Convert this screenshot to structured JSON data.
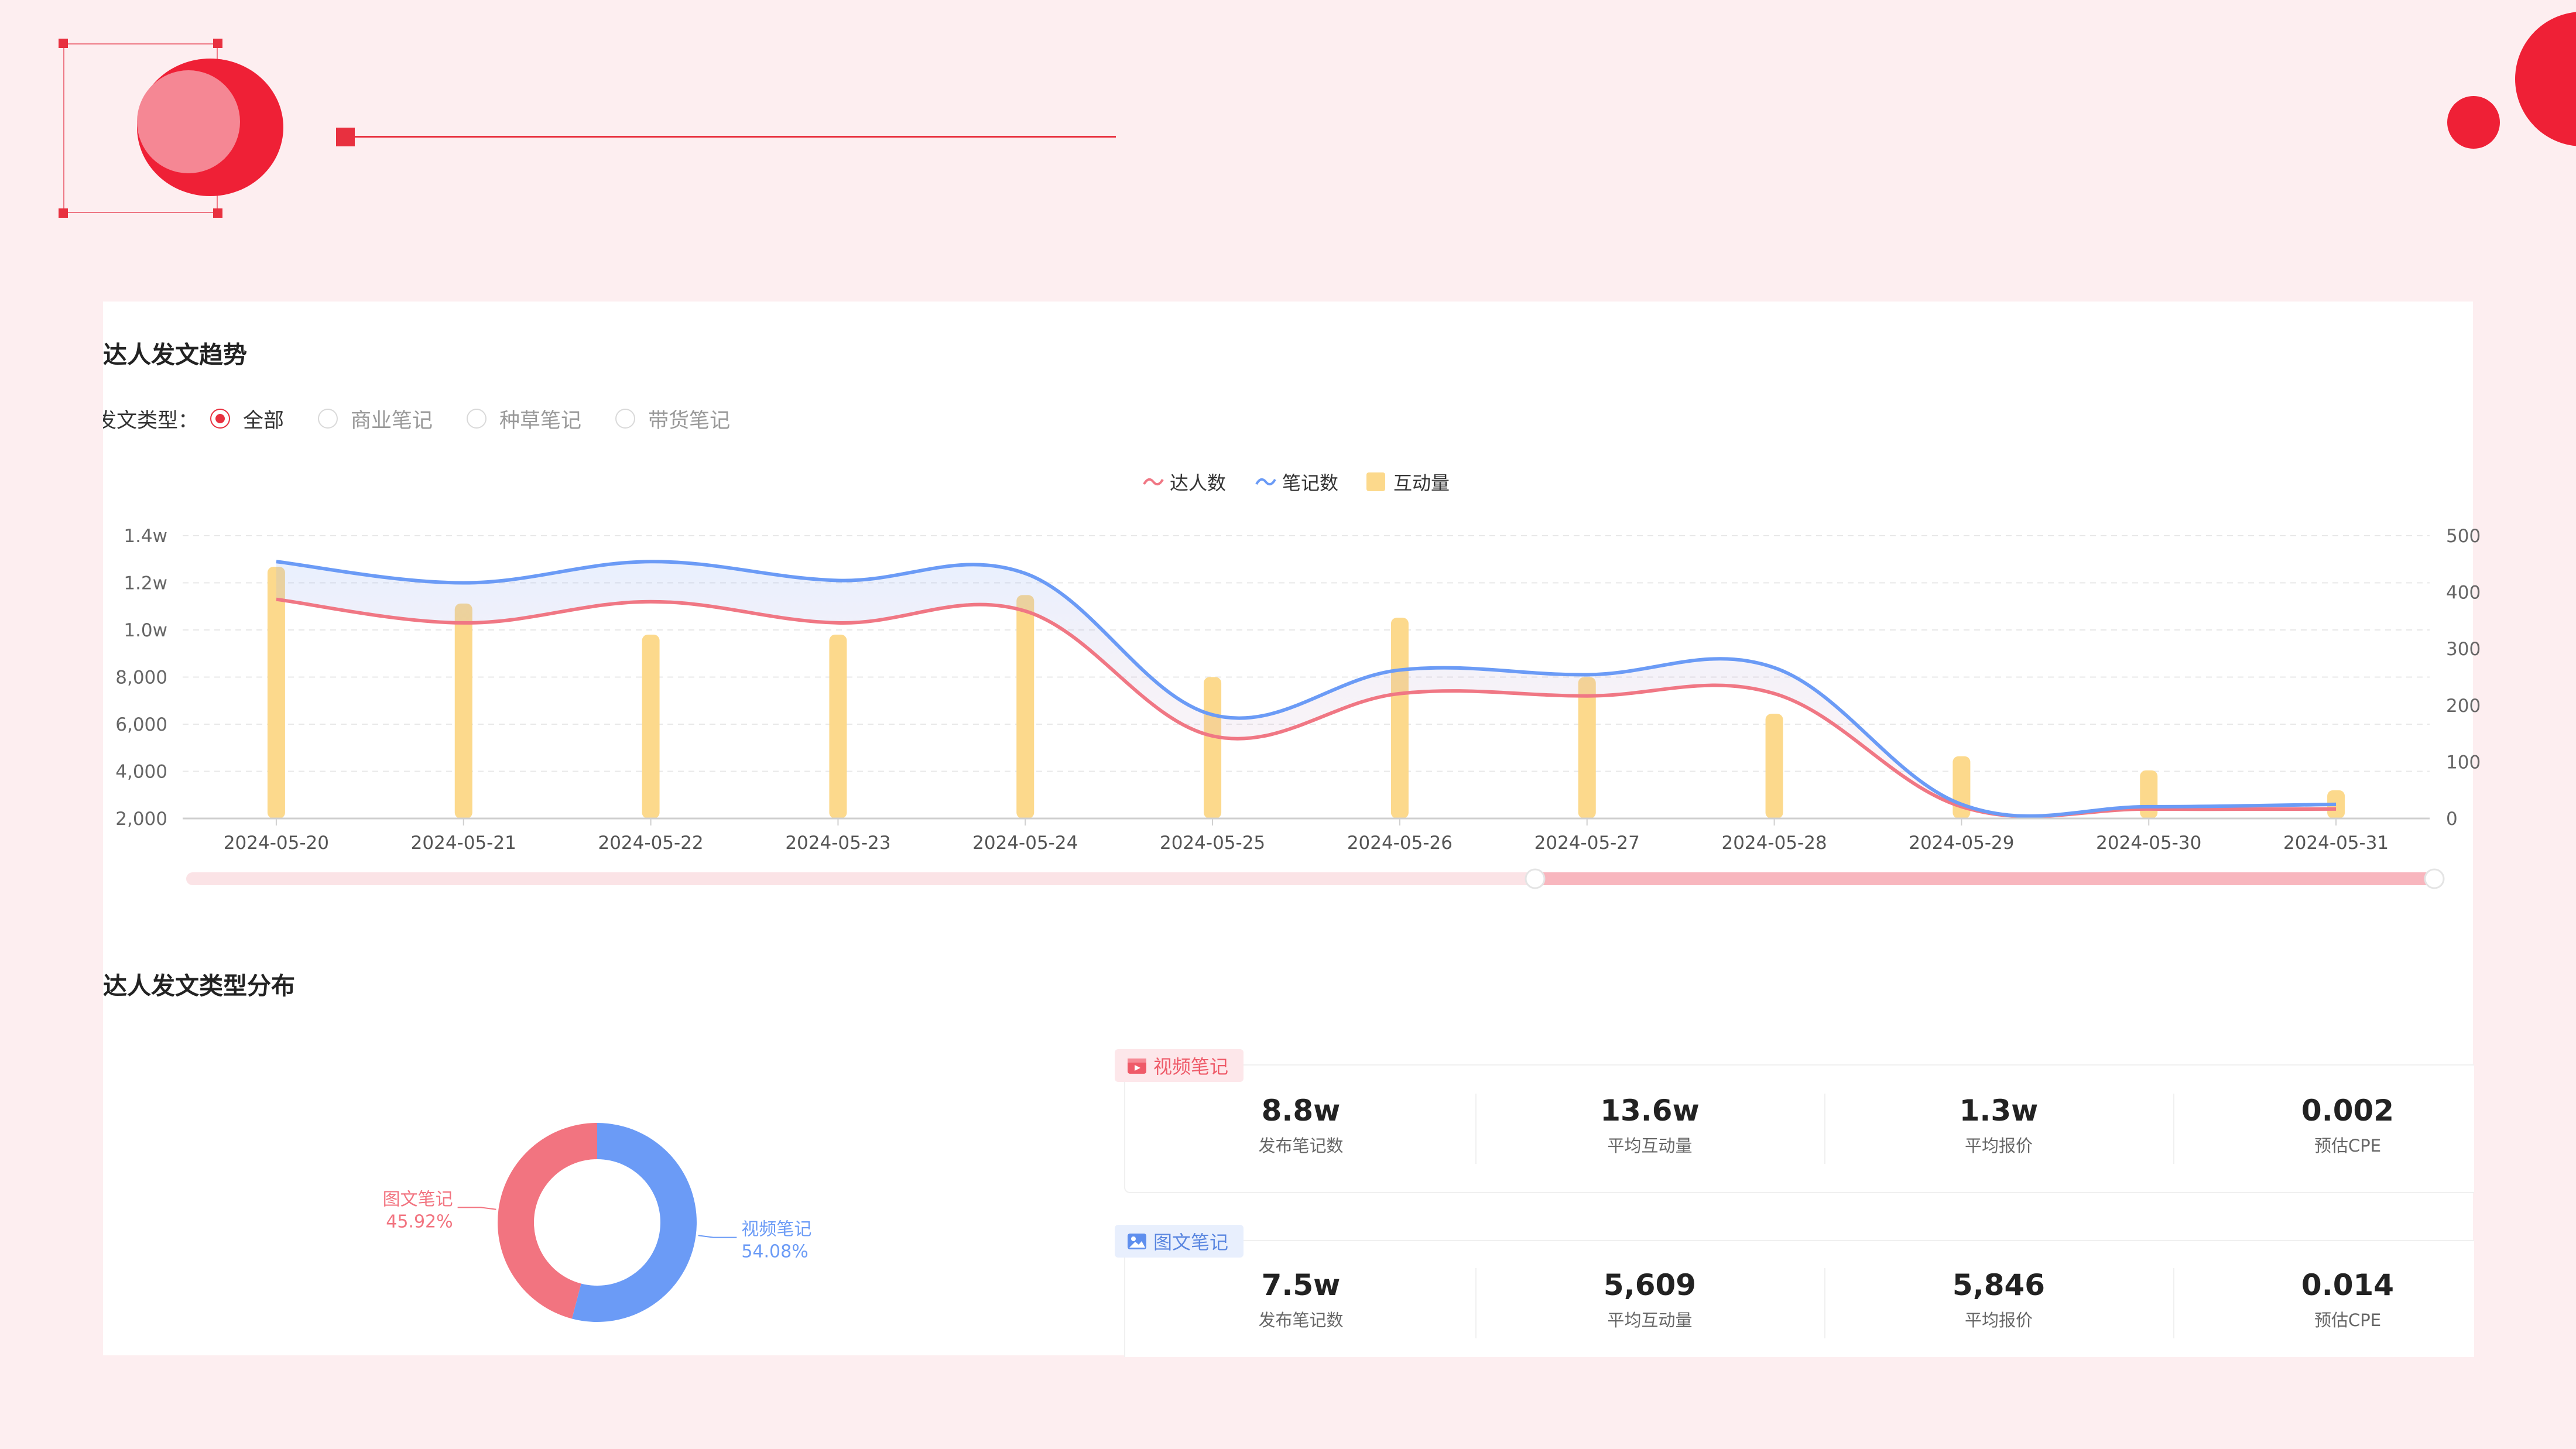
{
  "colors": {
    "accent": "#e8303f",
    "talent_line": "#f07784",
    "notes_line": "#6b9bf6",
    "interaction_bar": "#fcd98c",
    "pie_image": "#f27480",
    "pie_video": "#6b9bf6"
  },
  "trend": {
    "title": "达人发文趋势",
    "filter": {
      "label": "发文类型：",
      "options": [
        "全部",
        "商业笔记",
        "种草笔记",
        "带货笔记"
      ],
      "selected": "全部"
    },
    "legend": [
      "达人数",
      "笔记数",
      "互动量"
    ]
  },
  "chart_data": [
    {
      "type": "line",
      "categories": [
        "2024-05-20",
        "2024-05-21",
        "2024-05-22",
        "2024-05-23",
        "2024-05-24",
        "2024-05-25",
        "2024-05-26",
        "2024-05-27",
        "2024-05-28",
        "2024-05-29",
        "2024-05-30",
        "2024-05-31"
      ],
      "left_axis_ticks": [
        "2,000",
        "4,000",
        "6,000",
        "8,000",
        "1.0w",
        "1.2w",
        "1.4w"
      ],
      "ylim_left": [
        2000,
        14000
      ],
      "right_axis_ticks": [
        "0",
        "100",
        "200",
        "300",
        "400",
        "500"
      ],
      "ylim_right": [
        0,
        500
      ],
      "series": [
        {
          "name": "达人数",
          "kind": "line",
          "axis": "left",
          "values": [
            11300,
            10300,
            11200,
            10300,
            10800,
            5500,
            7300,
            7200,
            7300,
            2500,
            2400,
            2400
          ]
        },
        {
          "name": "笔记数",
          "kind": "line",
          "axis": "left",
          "values": [
            12900,
            12000,
            12900,
            12100,
            12400,
            6400,
            8300,
            8100,
            8400,
            2600,
            2500,
            2600
          ]
        },
        {
          "name": "互动量",
          "kind": "bar",
          "axis": "right",
          "values": [
            445,
            380,
            325,
            325,
            395,
            250,
            355,
            250,
            185,
            110,
            85,
            50
          ]
        }
      ],
      "grid": true,
      "legend_position": "top-center",
      "zoom_range": [
        0.6,
        1.0
      ]
    },
    {
      "type": "pie",
      "title": "达人发文类型分布",
      "slices": [
        {
          "name": "视频笔记",
          "value": 54.08,
          "label": "54.08%"
        },
        {
          "name": "图文笔记",
          "value": 45.92,
          "label": "45.92%"
        }
      ]
    }
  ],
  "distribution": {
    "title": "达人发文类型分布",
    "video": {
      "tag": "视频笔记",
      "icon": "video-icon",
      "stats": [
        {
          "value": "8.8w",
          "label": "发布笔记数"
        },
        {
          "value": "13.6w",
          "label": "平均互动量"
        },
        {
          "value": "1.3w",
          "label": "平均报价"
        },
        {
          "value": "0.002",
          "label": "预估CPE"
        }
      ]
    },
    "image": {
      "tag": "图文笔记",
      "icon": "image-icon",
      "stats": [
        {
          "value": "7.5w",
          "label": "发布笔记数"
        },
        {
          "value": "5,609",
          "label": "平均互动量"
        },
        {
          "value": "5,846",
          "label": "平均报价"
        },
        {
          "value": "0.014",
          "label": "预估CPE"
        }
      ]
    }
  }
}
